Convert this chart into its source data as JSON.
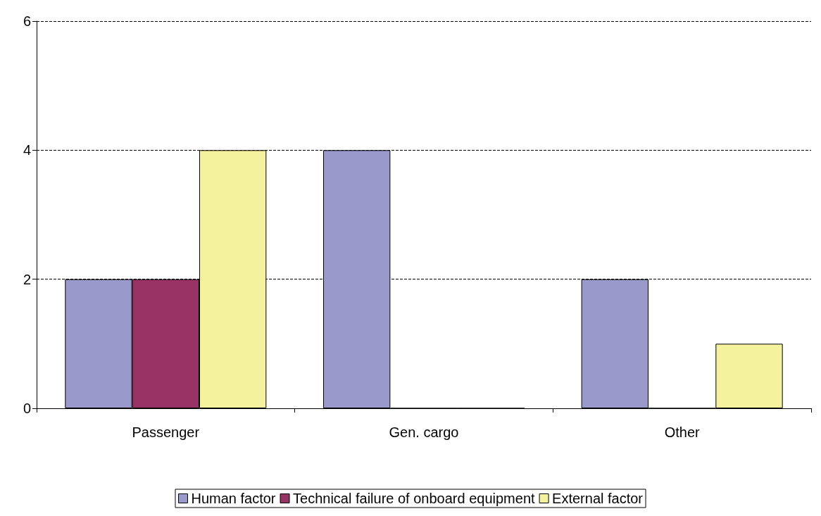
{
  "chart_data": {
    "type": "bar",
    "categories": [
      "Passenger",
      "Gen. cargo",
      "Other"
    ],
    "series": [
      {
        "name": "Human factor",
        "color": "#9999cc",
        "values": [
          2,
          4,
          2
        ]
      },
      {
        "name": "Technical failure of onboard equipment",
        "color": "#993366",
        "values": [
          2,
          0,
          0
        ]
      },
      {
        "name": "External factor",
        "color": "#f5f29e",
        "values": [
          4,
          0,
          1
        ]
      }
    ],
    "ylim": [
      0,
      6
    ],
    "yticks": [
      0,
      2,
      4,
      6
    ],
    "grid": "y",
    "legend": "bottom"
  }
}
